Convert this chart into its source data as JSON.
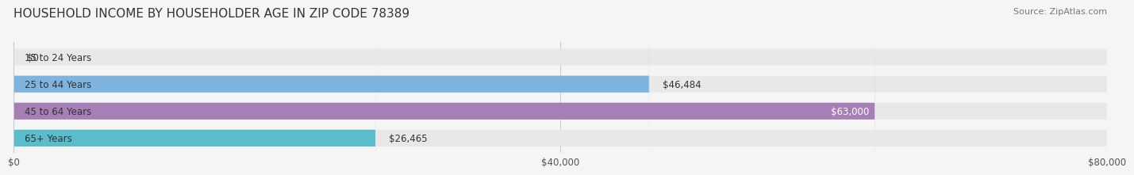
{
  "title": "HOUSEHOLD INCOME BY HOUSEHOLDER AGE IN ZIP CODE 78389",
  "source": "Source: ZipAtlas.com",
  "categories": [
    "15 to 24 Years",
    "25 to 44 Years",
    "45 to 64 Years",
    "65+ Years"
  ],
  "values": [
    0,
    46484,
    63000,
    26465
  ],
  "bar_colors": [
    "#f08080",
    "#7eb3e0",
    "#a57fb5",
    "#5bbccc"
  ],
  "label_texts": [
    "$0",
    "$46,484",
    "$63,000",
    "$26,465"
  ],
  "label_inside": [
    false,
    false,
    true,
    false
  ],
  "xlim": [
    0,
    80000
  ],
  "xticks": [
    0,
    40000,
    80000
  ],
  "xtick_labels": [
    "$0",
    "$40,000",
    "$80,000"
  ],
  "bg_color": "#f5f5f5",
  "bar_bg_color": "#e8e8e8",
  "bar_height": 0.62,
  "title_fontsize": 11,
  "source_fontsize": 8,
  "tick_fontsize": 8.5,
  "label_fontsize": 8.5,
  "category_fontsize": 8.5
}
